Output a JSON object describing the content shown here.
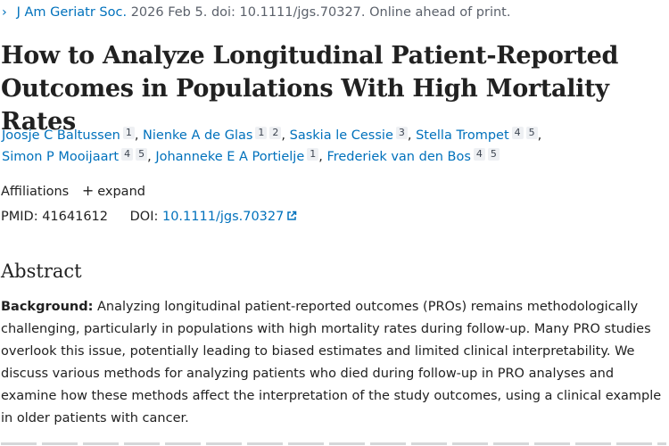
{
  "citation": {
    "chevron": "›",
    "journal": "J Am Geriatr Soc.",
    "details": "2026 Feb 5. doi: 10.1111/jgs.70327. Online ahead of print."
  },
  "title": "How to Analyze Longitudinal Patient-Reported Outcomes in Populations With High Mortality Rates",
  "authors": [
    {
      "name": "Joosje C Baltussen",
      "affiliations": [
        "1"
      ]
    },
    {
      "name": "Nienke A de Glas",
      "affiliations": [
        "1",
        "2"
      ]
    },
    {
      "name": "Saskia le Cessie",
      "affiliations": [
        "3"
      ]
    },
    {
      "name": "Stella Trompet",
      "affiliations": [
        "4",
        "5"
      ]
    },
    {
      "name": "Simon P Mooijaart",
      "affiliations": [
        "4",
        "5"
      ]
    },
    {
      "name": "Johanneke E A Portielje",
      "affiliations": [
        "1"
      ]
    },
    {
      "name": "Frederiek van den Bos",
      "affiliations": [
        "4",
        "5"
      ]
    }
  ],
  "affiliations_section": {
    "label": "Affiliations",
    "expand_icon": "+",
    "expand_label": "expand"
  },
  "identifiers": {
    "pmid_label": "PMID:",
    "pmid": "41641612",
    "doi_label": "DOI:",
    "doi": "10.1111/jgs.70327"
  },
  "abstract": {
    "heading": "Abstract",
    "background_label": "Background:",
    "background_text": "Analyzing longitudinal patient-reported outcomes (PROs) remains methodologically challenging, particularly in populations with high mortality rates during follow-up. Many PRO studies overlook this issue, potentially leading to biased estimates and limited clinical interpretability. We discuss various methods for analyzing patients who died during follow-up in PRO analyses and examine how these methods affect the interpretation of the study outcomes, using a clinical example in older patients with cancer."
  },
  "colors": {
    "link": "#0071bc",
    "text": "#212121",
    "muted": "#5b616b"
  }
}
